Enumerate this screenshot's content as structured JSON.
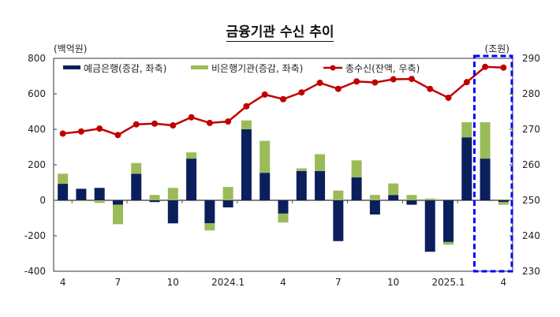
{
  "chart_data": {
    "type": "bar+line",
    "title": "금융기관 수신 추이",
    "left_unit": "(백억원)",
    "right_unit": "(조원)",
    "left_ylim": [
      -400,
      800
    ],
    "left_ticks": [
      -400,
      -200,
      0,
      200,
      400,
      600,
      800
    ],
    "right_ylim": [
      230,
      290
    ],
    "right_ticks": [
      230,
      240,
      250,
      260,
      270,
      280,
      290
    ],
    "grid": false,
    "legend_placement": "top",
    "x_tick_labels": [
      "4",
      "",
      "",
      "7",
      "",
      "",
      "10",
      "",
      "",
      "2024.1",
      "",
      "",
      "4",
      "",
      "",
      "7",
      "",
      "",
      "10",
      "",
      "",
      "2025.1",
      "",
      "",
      "4"
    ],
    "categories": [
      "2023.4",
      "2023.5",
      "2023.6",
      "2023.7",
      "2023.8",
      "2023.9",
      "2023.10",
      "2023.11",
      "2023.12",
      "2024.1",
      "2024.2",
      "2024.3",
      "2024.4",
      "2024.5",
      "2024.6",
      "2024.7",
      "2024.8",
      "2024.9",
      "2024.10",
      "2024.11",
      "2024.12",
      "2025.1",
      "2025.2",
      "2025.3",
      "2025.4"
    ],
    "series": [
      {
        "name": "예금은행(증감, 좌축)",
        "type": "bar",
        "axis": "left",
        "color": "#0b1f5c",
        "values": [
          93,
          65,
          70,
          -25,
          150,
          -10,
          -130,
          235,
          -130,
          -40,
          400,
          155,
          -75,
          165,
          165,
          -230,
          130,
          -80,
          30,
          -25,
          -290,
          -235,
          355,
          235,
          -10
        ]
      },
      {
        "name": "비은행기관(증감, 좌축)",
        "type": "bar",
        "axis": "left",
        "color": "#9bbb59",
        "values": [
          57,
          -5,
          -15,
          -110,
          60,
          30,
          70,
          35,
          -40,
          75,
          50,
          180,
          -50,
          15,
          95,
          55,
          95,
          30,
          65,
          30,
          10,
          -15,
          85,
          205,
          -15
        ]
      },
      {
        "name": "총수신(잔액, 우축)",
        "type": "line",
        "axis": "right",
        "color": "#c00000",
        "values": [
          268.8,
          269.4,
          270.2,
          268.4,
          271.4,
          271.6,
          271.1,
          273.4,
          271.8,
          272.2,
          276.5,
          279.8,
          278.5,
          280.4,
          283.1,
          281.4,
          283.5,
          283.2,
          284.1,
          284.2,
          281.4,
          278.9,
          283.3,
          287.6,
          287.4
        ]
      }
    ],
    "highlight_color": "#0000ff"
  }
}
